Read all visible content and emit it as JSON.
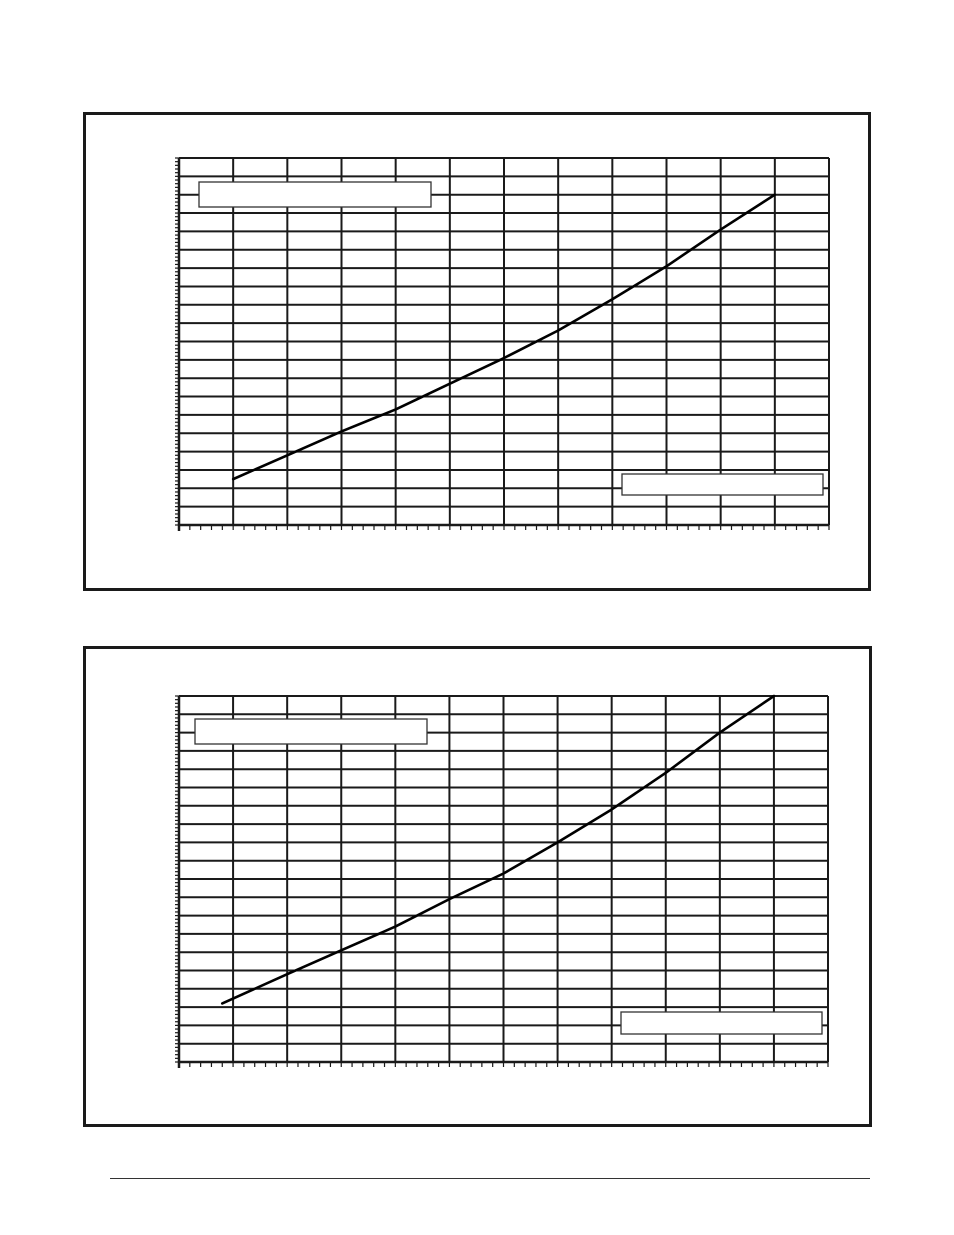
{
  "chart_data": [
    {
      "type": "line",
      "title": "",
      "xlabel": "",
      "ylabel": "",
      "xlim": [
        0,
        12
      ],
      "ylim": [
        0,
        20
      ],
      "grid": true,
      "series": [
        {
          "x": [
            1,
            2,
            3,
            4,
            5,
            6,
            7,
            8,
            9,
            10,
            11
          ],
          "values": [
            2.5,
            3.8,
            5.1,
            6.3,
            7.7,
            9.1,
            10.6,
            12.3,
            14.1,
            16.1,
            18.0
          ]
        }
      ],
      "legend_boxes": [
        "",
        ""
      ]
    },
    {
      "type": "line",
      "title": "",
      "xlabel": "",
      "ylabel": "",
      "xlim": [
        0,
        12
      ],
      "ylim": [
        0,
        20
      ],
      "grid": true,
      "series": [
        {
          "x": [
            0.8,
            2,
            3,
            4,
            5,
            6,
            7,
            8,
            9,
            10,
            11
          ],
          "values": [
            3.2,
            4.8,
            6.1,
            7.4,
            8.9,
            10.3,
            12.0,
            13.8,
            15.8,
            18.0,
            20.0
          ]
        }
      ],
      "legend_boxes": [
        "",
        ""
      ]
    }
  ],
  "colors": {
    "grid": "#1a1a1a",
    "line": "#000000",
    "frame": "#1a1a1a"
  }
}
